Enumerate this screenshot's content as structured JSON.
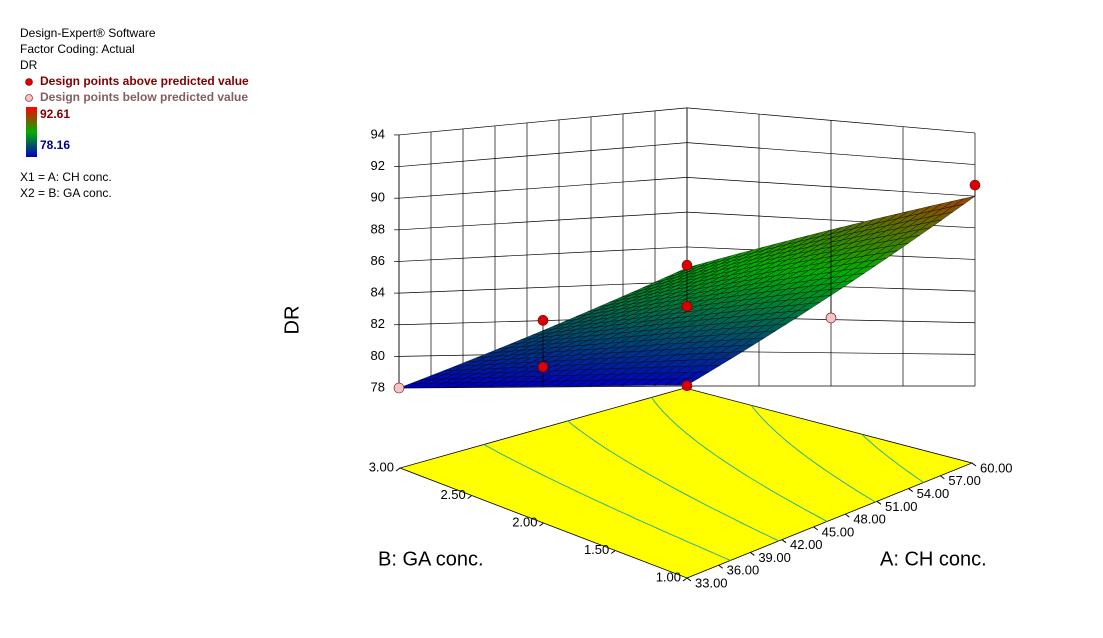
{
  "chart_data": {
    "type": "surface3d",
    "notes": [
      "Design-Expert® Software",
      "Factor Coding: Actual",
      "DR"
    ],
    "legend": [
      {
        "name": "Design points above predicted value",
        "color": "#dd0000"
      },
      {
        "name": "Design points below predicted value",
        "color": "#f5c4c4"
      }
    ],
    "colorbar": {
      "range": [
        78.16,
        92.61
      ],
      "colors": [
        "#0000c0",
        "#00b000",
        "#ff0000"
      ]
    },
    "factors": [
      "X1 = A: CH conc.",
      "X2 = B: GA conc."
    ],
    "zlabel": "DR",
    "xlabel": "A: CH conc.",
    "ylabel": "B: GA conc.",
    "xlim": [
      33,
      60
    ],
    "xticks": [
      {
        "value": 33,
        "label": "33.00"
      },
      {
        "value": 36,
        "label": "36.00"
      },
      {
        "value": 39,
        "label": "39.00"
      },
      {
        "value": 42,
        "label": "42.00"
      },
      {
        "value": 45,
        "label": "45.00"
      },
      {
        "value": 48,
        "label": "48.00"
      },
      {
        "value": 51,
        "label": "51.00"
      },
      {
        "value": 54,
        "label": "54.00"
      },
      {
        "value": 57,
        "label": "57.00"
      },
      {
        "value": 60,
        "label": "60.00"
      }
    ],
    "ylim": [
      1,
      3
    ],
    "yticks": [
      {
        "value": 1,
        "label": "1.00"
      },
      {
        "value": 1.5,
        "label": "1.50"
      },
      {
        "value": 2,
        "label": "2.00"
      },
      {
        "value": 2.5,
        "label": "2.50"
      },
      {
        "value": 3,
        "label": "3.00"
      }
    ],
    "zlim": [
      78,
      94
    ],
    "zticks": [
      78,
      80,
      82,
      84,
      86,
      88,
      90,
      92,
      94
    ],
    "surface": {
      "corners": [
        [
          78.2,
          78.0
        ],
        [
          90.0,
          84.8
        ]
      ]
    },
    "contour_levels": [
      80,
      82,
      84,
      86,
      88
    ],
    "contour_color": "#2db38a",
    "floor_color": "#ffff00",
    "points": [
      {
        "x": 60,
        "y": 1,
        "value": 90.7,
        "above": true
      },
      {
        "x": 33,
        "y": 3,
        "value": 78.0,
        "above": false
      },
      {
        "x": 33,
        "y": 1,
        "value": 78.16,
        "above": true
      },
      {
        "x": 46.5,
        "y": 2,
        "value": 85.7,
        "above": true
      },
      {
        "x": 46.5,
        "y": 2,
        "value": 83.1,
        "above": true
      },
      {
        "x": 33,
        "y": 2,
        "value": 82.5,
        "above": true
      },
      {
        "x": 39.75,
        "y": 2.5,
        "value": 79.3,
        "above": true
      },
      {
        "x": 60,
        "y": 2,
        "value": 82.1,
        "above": false
      }
    ]
  }
}
